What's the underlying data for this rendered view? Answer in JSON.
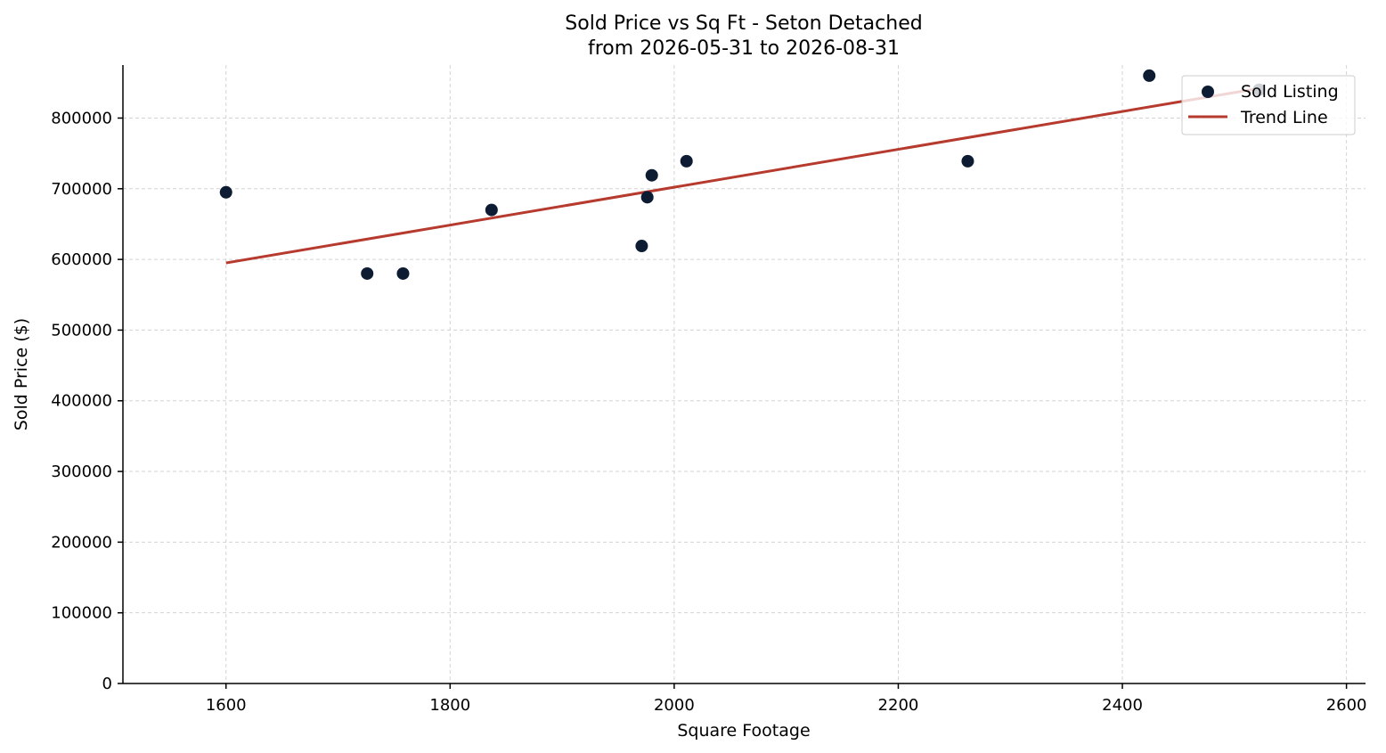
{
  "chart_data": {
    "type": "scatter",
    "title": "Sold Price vs Sq Ft - Seton Detached",
    "subtitle": "from 2026-05-31 to 2026-08-31",
    "xlabel": "Square Footage",
    "ylabel": "Sold Price ($)",
    "xlim": [
      1508,
      2617
    ],
    "ylim": [
      0,
      875000
    ],
    "xticks": [
      1600,
      1800,
      2000,
      2200,
      2400,
      2600
    ],
    "yticks": [
      0,
      100000,
      200000,
      300000,
      400000,
      500000,
      600000,
      700000,
      800000
    ],
    "grid": true,
    "legend_position": "top-right",
    "series": [
      {
        "name": "Sold Listing",
        "kind": "scatter",
        "color": "#0d1b33",
        "points": [
          {
            "x": 1600,
            "y": 695000
          },
          {
            "x": 1726,
            "y": 580000
          },
          {
            "x": 1758,
            "y": 580000
          },
          {
            "x": 1837,
            "y": 670000
          },
          {
            "x": 1971,
            "y": 619000
          },
          {
            "x": 1976,
            "y": 688000
          },
          {
            "x": 1980,
            "y": 719000
          },
          {
            "x": 2011,
            "y": 739000
          },
          {
            "x": 2262,
            "y": 739000
          },
          {
            "x": 2424,
            "y": 860000
          },
          {
            "x": 2522,
            "y": 840000
          }
        ]
      },
      {
        "name": "Trend Line",
        "kind": "line",
        "color": "#b63a2e",
        "points": [
          {
            "x": 1600,
            "y": 595000
          },
          {
            "x": 2522,
            "y": 842000
          }
        ]
      }
    ]
  }
}
